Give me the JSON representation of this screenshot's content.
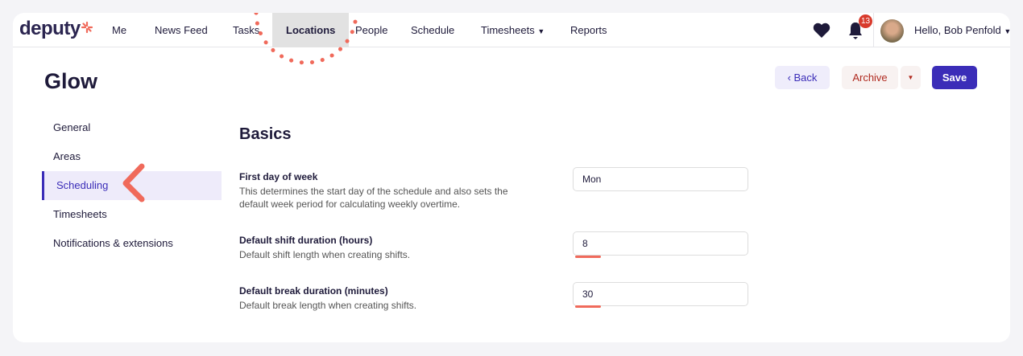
{
  "nav": {
    "logo": "deputy",
    "items": [
      "Me",
      "News Feed",
      "Tasks",
      "Locations",
      "People",
      "Schedule",
      "Timesheets",
      "Reports"
    ],
    "active": "Locations",
    "notifications": "13",
    "greeting": "Hello, Bob Penfold"
  },
  "page": {
    "title": "Glow",
    "back": "Back",
    "archive": "Archive",
    "save": "Save"
  },
  "sidebar": {
    "items": [
      "General",
      "Areas",
      "Scheduling",
      "Timesheets",
      "Notifications & extensions"
    ],
    "active": "Scheduling"
  },
  "section": {
    "title": "Basics",
    "fields": [
      {
        "label": "First day of week",
        "desc": "This determines the start day of the schedule and also sets the default week period for calculating weekly overtime.",
        "value": "Mon"
      },
      {
        "label": "Default shift duration (hours)",
        "desc": "Default shift length when creating shifts.",
        "value": "8"
      },
      {
        "label": "Default break duration (minutes)",
        "desc": "Default break length when creating shifts.",
        "value": "30"
      }
    ]
  },
  "colors": {
    "accent": "#3b2db8",
    "highlight": "#f06a5b",
    "archive": "#b02a1f"
  }
}
